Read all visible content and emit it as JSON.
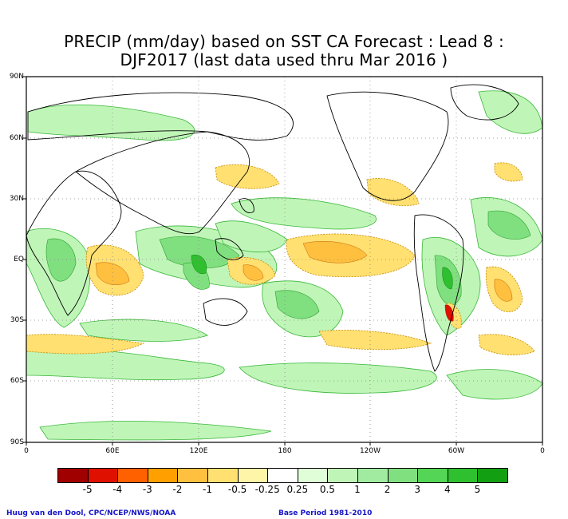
{
  "title_line1": "PRECIP (mm/day) based on SST CA Forecast : Lead 8 :",
  "title_line2": "DJF2017 (last data used thru Mar 2016 )",
  "lat_labels": [
    "90N",
    "60N",
    "30N",
    "EQ",
    "30S",
    "60S",
    "90S"
  ],
  "lon_labels": [
    "0",
    "60E",
    "120E",
    "180",
    "120W",
    "60W",
    "0"
  ],
  "legend": {
    "labels": [
      "-5",
      "-4",
      "-3",
      "-2",
      "-1",
      "-0.5",
      "-0.25",
      "0.25",
      "0.5",
      "1",
      "2",
      "3",
      "4",
      "5"
    ],
    "colors": [
      "#a00000",
      "#e01000",
      "#ff6000",
      "#ffa000",
      "#ffc040",
      "#ffe070",
      "#fff5a8",
      "#ffffff",
      "#e0ffd8",
      "#c0f5b8",
      "#a0eba0",
      "#80e080",
      "#55d555",
      "#2ec02e",
      "#12a012"
    ]
  },
  "footer_left": "Huug van den Dool, CPC/NCEP/NWS/NOAA",
  "footer_right": "Base Period 1981-2010"
}
